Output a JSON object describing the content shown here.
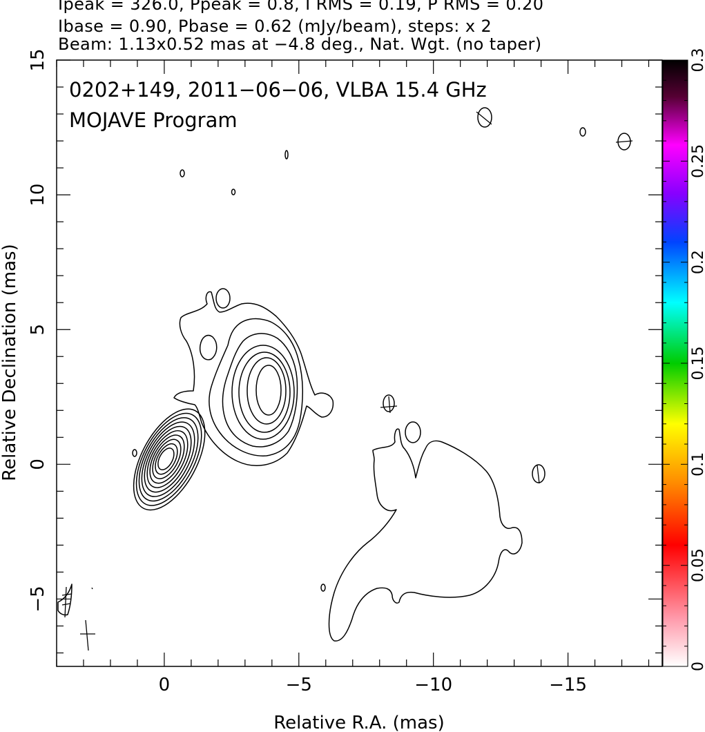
{
  "header": {
    "line1": "Ipeak = 326.0, Ppeak = 0.8, I RMS = 0.19, P RMS = 0.20",
    "line2": "Ibase = 0.90, Pbase = 0.62 (mJy/beam), steps: x 2",
    "line3": "Beam: 1.13x0.52 mas at −4.8 deg., Nat. Wgt. (no taper)"
  },
  "chart_data": {
    "type": "contour",
    "title_line1": "0202+149, 2011−06−06, VLBA 15.4 GHz",
    "title_line2": "MOJAVE Program",
    "xlabel": "Relative R.A. (mas)",
    "ylabel": "Relative Declination (mas)",
    "xlim": [
      4.0,
      -18.5
    ],
    "ylim": [
      -7.5,
      15.0
    ],
    "x_ticks": [
      {
        "value": 0,
        "label": "0"
      },
      {
        "value": -5,
        "label": "−5"
      },
      {
        "value": -10,
        "label": "−10"
      },
      {
        "value": -15,
        "label": "−15"
      }
    ],
    "y_ticks": [
      {
        "value": -5,
        "label": "−5"
      },
      {
        "value": 0,
        "label": "0"
      },
      {
        "value": 5,
        "label": "5"
      },
      {
        "value": 10,
        "label": "10"
      },
      {
        "value": 15,
        "label": "15"
      }
    ],
    "colorbar": {
      "min": 0,
      "max": 0.3,
      "ticks": [
        {
          "value": 0,
          "label": "0"
        },
        {
          "value": 0.05,
          "label": "0.05"
        },
        {
          "value": 0.1,
          "label": "0.1"
        },
        {
          "value": 0.15,
          "label": "0.15"
        },
        {
          "value": 0.2,
          "label": "0.2"
        },
        {
          "value": 0.25,
          "label": "0.25"
        },
        {
          "value": 0.3,
          "label": "0.3"
        }
      ],
      "colors": [
        "#ffffff",
        "#ff99aa",
        "#ff0000",
        "#ff8800",
        "#ffff00",
        "#00cc00",
        "#00ffff",
        "#0044ff",
        "#8800ff",
        "#ff00ff",
        "#000000"
      ]
    },
    "core": {
      "x": -0.05,
      "y": 0.2,
      "levels": 10
    },
    "features": [
      {
        "name": "core",
        "x": -0.05,
        "y": 0.2
      },
      {
        "name": "knot",
        "x": -3.9,
        "y": 2.7
      },
      {
        "name": "extended lobe",
        "x": -9.5,
        "y": -2.8
      }
    ]
  }
}
